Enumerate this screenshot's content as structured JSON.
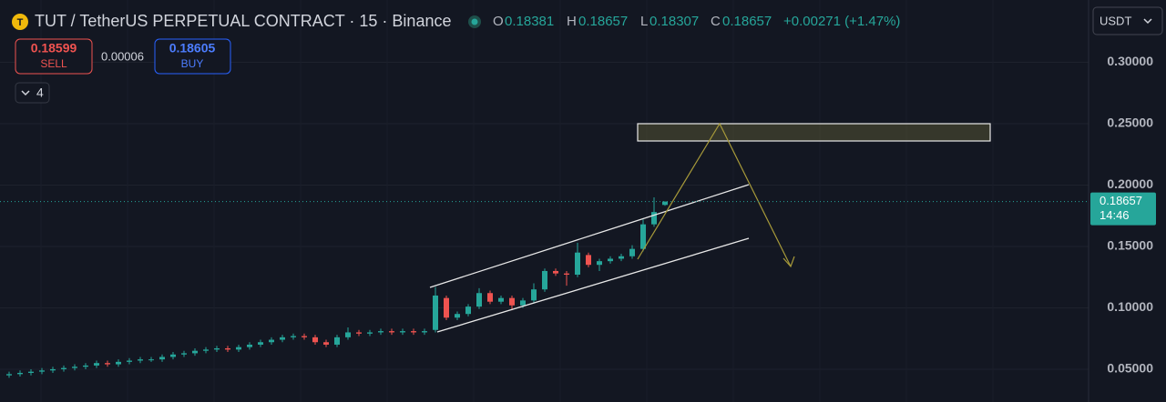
{
  "chart_data": {
    "type": "candlestick",
    "title": "TUT / TetherUS PERPETUAL CONTRACT · 15 · Binance",
    "ohlc_labels": {
      "o": "O",
      "h": "H",
      "l": "L",
      "c": "C"
    },
    "ohlc_values": {
      "o": "0.18381",
      "h": "0.18657",
      "l": "0.18307",
      "c": "0.18657",
      "change": "+0.00271 (+1.47%)"
    },
    "sell": {
      "price": "0.18599",
      "label": "SELL"
    },
    "spread": "0.00006",
    "buy": {
      "price": "0.18605",
      "label": "BUY"
    },
    "indicators": "4",
    "currency": "USDT",
    "last_price": 0.18657,
    "countdown": "14:46",
    "open": [
      0.045,
      0.046,
      0.047,
      0.048,
      0.049,
      0.05,
      0.051,
      0.052,
      0.053,
      0.055,
      0.054,
      0.056,
      0.057,
      0.058,
      0.058,
      0.06,
      0.062,
      0.063,
      0.065,
      0.066,
      0.067,
      0.066,
      0.068,
      0.07,
      0.072,
      0.074,
      0.076,
      0.077,
      0.076,
      0.072,
      0.07,
      0.076,
      0.08,
      0.079,
      0.08,
      0.081,
      0.08,
      0.081,
      0.08,
      0.082,
      0.108,
      0.092,
      0.095,
      0.101,
      0.112,
      0.105,
      0.108,
      0.102,
      0.106,
      0.115,
      0.13,
      0.128,
      0.127,
      0.143,
      0.135,
      0.138,
      0.14,
      0.142,
      0.148,
      0.168,
      0.18381
    ],
    "high": [
      0.048,
      0.049,
      0.05,
      0.051,
      0.052,
      0.053,
      0.054,
      0.055,
      0.057,
      0.057,
      0.058,
      0.059,
      0.06,
      0.06,
      0.062,
      0.064,
      0.065,
      0.067,
      0.068,
      0.069,
      0.069,
      0.07,
      0.072,
      0.074,
      0.076,
      0.078,
      0.079,
      0.079,
      0.078,
      0.074,
      0.078,
      0.084,
      0.082,
      0.082,
      0.083,
      0.083,
      0.083,
      0.083,
      0.083,
      0.117,
      0.11,
      0.097,
      0.103,
      0.116,
      0.114,
      0.11,
      0.11,
      0.108,
      0.12,
      0.132,
      0.132,
      0.13,
      0.153,
      0.145,
      0.14,
      0.142,
      0.144,
      0.151,
      0.172,
      0.19,
      0.18657
    ],
    "low": [
      0.043,
      0.044,
      0.045,
      0.046,
      0.047,
      0.048,
      0.049,
      0.05,
      0.051,
      0.052,
      0.052,
      0.054,
      0.055,
      0.056,
      0.056,
      0.058,
      0.06,
      0.061,
      0.063,
      0.064,
      0.064,
      0.064,
      0.066,
      0.068,
      0.07,
      0.072,
      0.074,
      0.074,
      0.07,
      0.068,
      0.068,
      0.074,
      0.077,
      0.077,
      0.078,
      0.078,
      0.078,
      0.078,
      0.078,
      0.08,
      0.09,
      0.09,
      0.093,
      0.099,
      0.103,
      0.103,
      0.098,
      0.1,
      0.104,
      0.113,
      0.126,
      0.118,
      0.125,
      0.133,
      0.13,
      0.136,
      0.138,
      0.14,
      0.146,
      0.166,
      0.18307
    ],
    "close": [
      0.046,
      0.047,
      0.048,
      0.049,
      0.05,
      0.051,
      0.052,
      0.053,
      0.055,
      0.054,
      0.056,
      0.057,
      0.058,
      0.058,
      0.06,
      0.062,
      0.063,
      0.065,
      0.066,
      0.067,
      0.066,
      0.068,
      0.07,
      0.072,
      0.074,
      0.076,
      0.077,
      0.076,
      0.072,
      0.07,
      0.076,
      0.08,
      0.079,
      0.08,
      0.081,
      0.08,
      0.081,
      0.08,
      0.081,
      0.11,
      0.092,
      0.095,
      0.101,
      0.112,
      0.105,
      0.108,
      0.102,
      0.106,
      0.115,
      0.13,
      0.128,
      0.127,
      0.145,
      0.135,
      0.138,
      0.14,
      0.142,
      0.148,
      0.168,
      0.178,
      0.18657
    ],
    "up_color": "#26a69a",
    "down_color": "#ef5350",
    "ylim": [
      0.0233,
      0.3507
    ],
    "yticks": [
      {
        "value": 0.05,
        "label": "0.05000"
      },
      {
        "value": 0.1,
        "label": "0.10000"
      },
      {
        "value": 0.15,
        "label": "0.15000"
      },
      {
        "value": 0.2,
        "label": "0.20000"
      },
      {
        "value": 0.25,
        "label": "0.25000"
      },
      {
        "value": 0.3,
        "label": "0.30000"
      }
    ],
    "grid": true
  }
}
